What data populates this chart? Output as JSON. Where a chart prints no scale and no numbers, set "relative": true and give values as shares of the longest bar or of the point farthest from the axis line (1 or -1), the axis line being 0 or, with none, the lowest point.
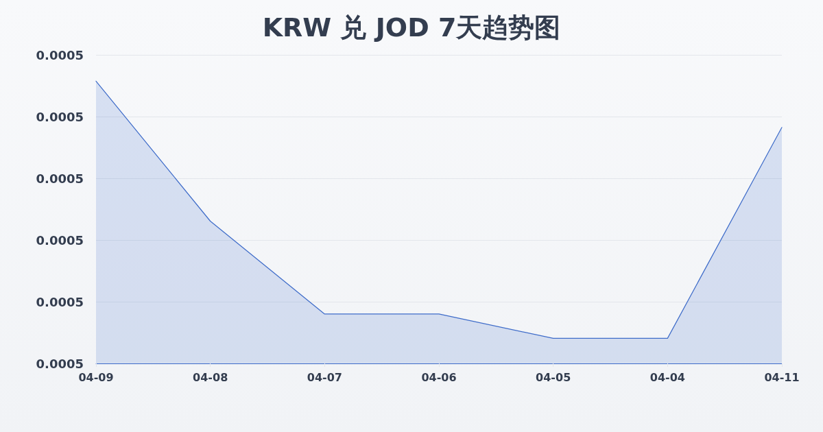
{
  "chart_data": {
    "type": "area",
    "title": "KRW 兑 JOD 7天趋势图",
    "categories": [
      "04-09",
      "04-08",
      "04-07",
      "04-06",
      "04-05",
      "04-04",
      "04-11"
    ],
    "values": [
      1,
      0.504,
      0.175,
      0.175,
      0.089,
      0.089,
      0.836
    ],
    "color": "#3d6bc9",
    "relative": true,
    "annotations": [
      "0.0005",
      "0.0005",
      "0.0005",
      "0.0005",
      "0.0005",
      "0.0005"
    ],
    "grid": "y"
  }
}
